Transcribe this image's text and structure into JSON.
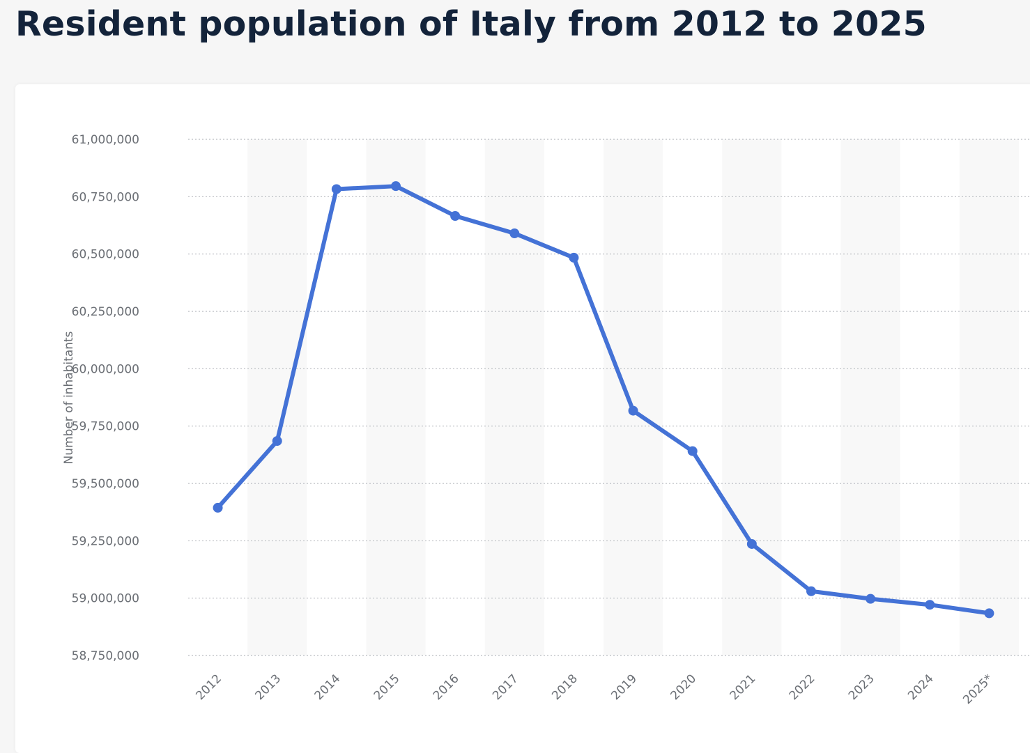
{
  "page": {
    "title": "Resident population of Italy from 2012 to 2025"
  },
  "chart_data": {
    "type": "line",
    "title": "Resident population of Italy from 2012 to 2025",
    "xlabel": "",
    "ylabel": "Number of inhabitants",
    "categories": [
      "2012",
      "2013",
      "2014",
      "2015",
      "2016",
      "2017",
      "2018",
      "2019",
      "2020",
      "2021",
      "2022",
      "2023",
      "2024",
      "2025*"
    ],
    "series": [
      {
        "name": "Resident population",
        "color": "#4472d6",
        "values": [
          59394000,
          59685000,
          60783000,
          60796000,
          60666000,
          60590000,
          60484000,
          59817000,
          59641000,
          59236000,
          59030000,
          58997000,
          58971000,
          58934000
        ]
      }
    ],
    "y_ticks": [
      58750000,
      59000000,
      59250000,
      59500000,
      59750000,
      60000000,
      60250000,
      60500000,
      60750000,
      61000000
    ],
    "y_tick_labels": [
      "58,750,000",
      "59,000,000",
      "59,250,000",
      "59,500,000",
      "59,750,000",
      "60,000,000",
      "60,250,000",
      "60,500,000",
      "60,750,000",
      "61,000,000"
    ],
    "ylim": [
      58750000,
      61000000
    ],
    "grid": true,
    "legend": "none"
  }
}
